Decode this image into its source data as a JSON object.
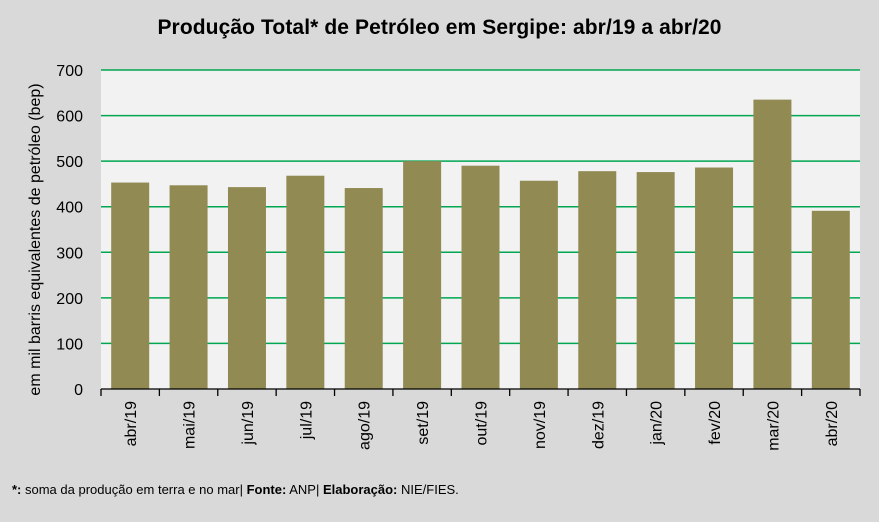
{
  "colors": {
    "background": "#d9d9d9",
    "plot_background": "#f2f2f2",
    "bar": "#918a53",
    "gridline": "#00a650",
    "axis": "#000000"
  },
  "chart_data": {
    "type": "bar",
    "title": "Produção Total* de Petróleo em Sergipe:  abr/19 a abr/20",
    "xlabel": "",
    "ylabel": "em mil barris equivalentes de petróleo (bep)",
    "ylim": [
      0,
      700
    ],
    "yticks": [
      0,
      100,
      200,
      300,
      400,
      500,
      600,
      700
    ],
    "grid": true,
    "categories": [
      "abr/19",
      "mai/19",
      "jun/19",
      "jul/19",
      "ago/19",
      "set/19",
      "out/19",
      "nov/19",
      "dez/19",
      "jan/20",
      "fev/20",
      "mar/20",
      "abr/20"
    ],
    "values": [
      453,
      447,
      443,
      468,
      441,
      500,
      490,
      457,
      478,
      476,
      486,
      635,
      391
    ]
  },
  "footnote": {
    "marker": "*:",
    "text1": " soma da produção em terra e no mar| ",
    "source_label": "Fonte:",
    "source_value": " ANP| ",
    "credit_label": "Elaboração:",
    "credit_value": " NIE/FIES."
  }
}
